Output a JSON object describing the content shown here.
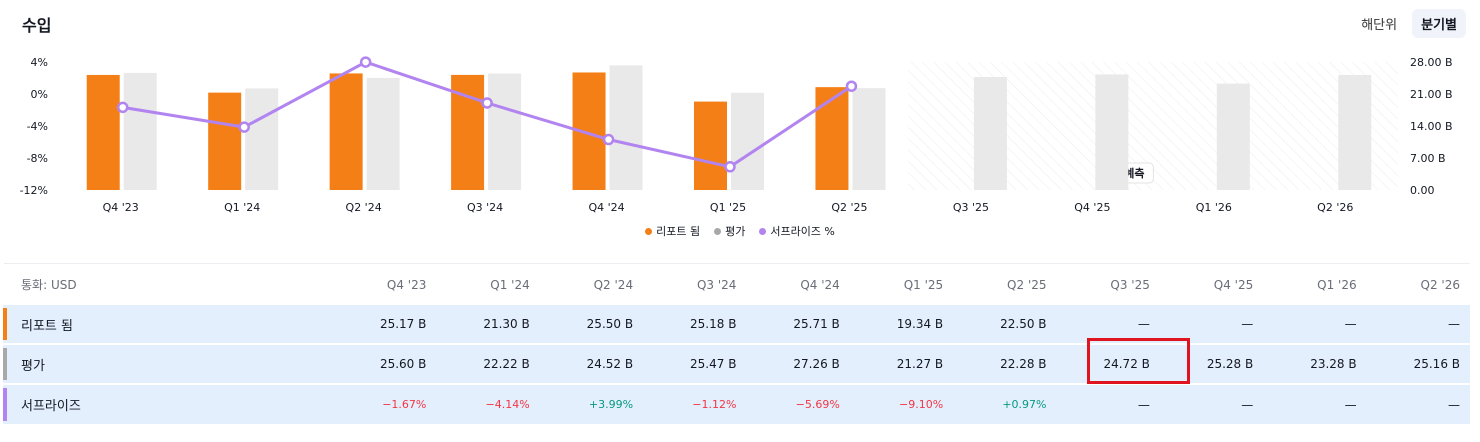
{
  "title": "수입",
  "toggle": {
    "annual": "해단위",
    "quarterly": "분기별"
  },
  "currency_label": "통화: USD",
  "forecast_label": "예측",
  "colors": {
    "reported": "#f57f17",
    "estimate": "#e9e9e9",
    "surprise": "#b184f0"
  },
  "chart_data": {
    "type": "bar",
    "categories": [
      "Q4 '23",
      "Q1 '24",
      "Q2 '24",
      "Q3 '24",
      "Q4 '24",
      "Q1 '25",
      "Q2 '25",
      "Q3 '25",
      "Q4 '25",
      "Q1 '26",
      "Q2 '26"
    ],
    "series": [
      {
        "name": "리포트 됨",
        "type": "bar",
        "axis": "right",
        "values": [
          25.17,
          21.3,
          25.5,
          25.18,
          25.71,
          19.34,
          22.5,
          null,
          null,
          null,
          null
        ]
      },
      {
        "name": "평가",
        "type": "bar",
        "axis": "right",
        "values": [
          25.6,
          22.22,
          24.52,
          25.47,
          27.26,
          21.27,
          22.28,
          24.72,
          25.28,
          23.28,
          25.16
        ]
      },
      {
        "name": "서프라이즈 %",
        "type": "line",
        "axis": "left",
        "values": [
          -1.67,
          -4.14,
          3.99,
          -1.12,
          -5.69,
          -9.1,
          0.97,
          null,
          null,
          null,
          null
        ]
      }
    ],
    "left_axis": {
      "ticks": [
        "4%",
        "0%",
        "-4%",
        "-8%",
        "-12%"
      ],
      "range": [
        -12,
        4
      ]
    },
    "right_axis": {
      "ticks": [
        "28.00 B",
        "21.00 B",
        "14.00 B",
        "7.00 B",
        "0.00"
      ],
      "range": [
        0,
        28
      ]
    },
    "forecast_start_index": 7,
    "legend_position": "bottom-center"
  },
  "table": {
    "headers": [
      "Q4 '23",
      "Q1 '24",
      "Q2 '24",
      "Q3 '24",
      "Q4 '24",
      "Q1 '25",
      "Q2 '25",
      "Q3 '25",
      "Q4 '25",
      "Q1 '26",
      "Q2 '26"
    ],
    "rows": [
      {
        "label": "리포트 됨",
        "color": "#f57f17",
        "values": [
          "25.17 B",
          "21.30 B",
          "25.50 B",
          "25.18 B",
          "25.71 B",
          "19.34 B",
          "22.50 B",
          "—",
          "—",
          "—",
          "—"
        ]
      },
      {
        "label": "평가",
        "color": "#a8a8a8",
        "values": [
          "25.60 B",
          "22.22 B",
          "24.52 B",
          "25.47 B",
          "27.26 B",
          "21.27 B",
          "22.28 B",
          "24.72 B",
          "25.28 B",
          "23.28 B",
          "25.16 B"
        ]
      },
      {
        "label": "서프라이즈",
        "color": "#b184f0",
        "values": [
          "−1.67%",
          "−4.14%",
          "+3.99%",
          "−1.12%",
          "−5.69%",
          "−9.10%",
          "+0.97%",
          "—",
          "—",
          "—",
          "—"
        ]
      }
    ]
  }
}
